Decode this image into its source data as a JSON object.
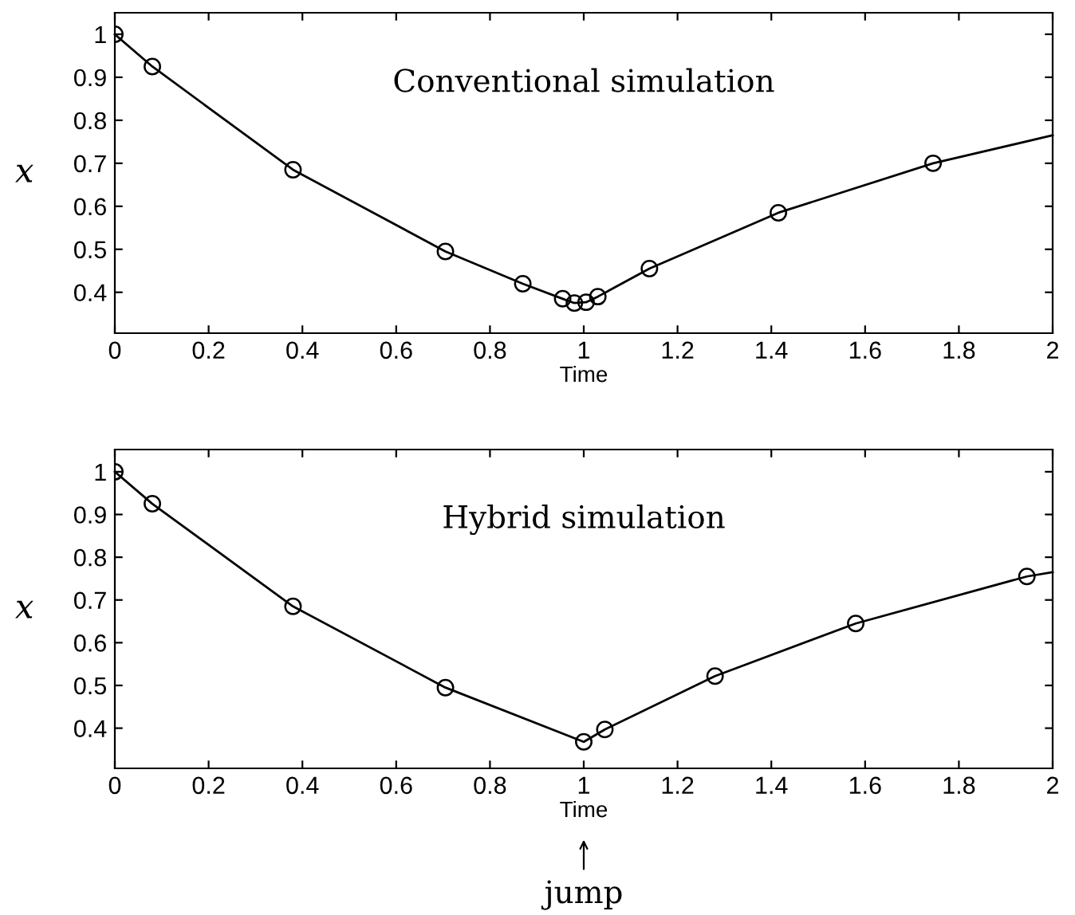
{
  "chart_data": [
    {
      "type": "line",
      "xlabel": "Time",
      "ylabel": "x",
      "annotations": [
        "Conventional simulation"
      ],
      "xlim": [
        0,
        2
      ],
      "xticks": [
        0,
        0.2,
        0.4,
        0.6,
        0.8,
        1,
        1.2,
        1.4,
        1.6,
        1.8,
        2
      ],
      "ylim": [
        0.305,
        1.05
      ],
      "yticks": [
        0.4,
        0.5,
        0.6,
        0.7,
        0.8,
        0.9,
        1
      ],
      "grid": false,
      "legend": false,
      "series": [
        {
          "color": "#000000",
          "marker": "none",
          "line_style": "solid",
          "x": [
            0,
            0.08,
            0.38,
            0.705,
            0.87,
            0.955,
            0.98,
            1.005,
            1.03,
            1.14,
            1.415,
            1.745,
            2
          ],
          "values": [
            1,
            0.925,
            0.685,
            0.495,
            0.42,
            0.385,
            0.375,
            0.377,
            0.39,
            0.455,
            0.585,
            0.7,
            0.765
          ]
        },
        {
          "type": "scatter",
          "color": "#000000",
          "marker": "circle",
          "x": [
            0,
            0.08,
            0.38,
            0.705,
            0.87,
            0.955,
            0.98,
            1.005,
            1.03,
            1.14,
            1.415,
            1.745
          ],
          "values": [
            1,
            0.925,
            0.685,
            0.495,
            0.42,
            0.385,
            0.375,
            0.377,
            0.39,
            0.455,
            0.585,
            0.7
          ]
        }
      ]
    },
    {
      "type": "line",
      "xlabel": "Time",
      "ylabel": "x",
      "annotations": [
        "Hybrid simulation",
        {
          "text": "jump",
          "x": 1
        }
      ],
      "xlim": [
        0,
        2
      ],
      "xticks": [
        0,
        0.2,
        0.4,
        0.6,
        0.8,
        1,
        1.2,
        1.4,
        1.6,
        1.8,
        2
      ],
      "ylim": [
        0.306,
        1.052
      ],
      "yticks": [
        0.4,
        0.5,
        0.6,
        0.7,
        0.8,
        0.9,
        1
      ],
      "grid": false,
      "legend": false,
      "series": [
        {
          "color": "#000000",
          "marker": "none",
          "line_style": "solid",
          "x": [
            0,
            0.08,
            0.38,
            0.705,
            1.0,
            1.045,
            1.28,
            1.58,
            1.945,
            2
          ],
          "values": [
            1,
            0.925,
            0.685,
            0.495,
            0.368,
            0.397,
            0.522,
            0.645,
            0.755,
            0.765
          ]
        },
        {
          "type": "scatter",
          "color": "#000000",
          "marker": "circle",
          "x": [
            0,
            0.08,
            0.38,
            0.705,
            1.0,
            1.045,
            1.28,
            1.58,
            1.945
          ],
          "values": [
            1,
            0.925,
            0.685,
            0.495,
            0.368,
            0.397,
            0.522,
            0.645,
            0.755
          ]
        }
      ]
    }
  ]
}
